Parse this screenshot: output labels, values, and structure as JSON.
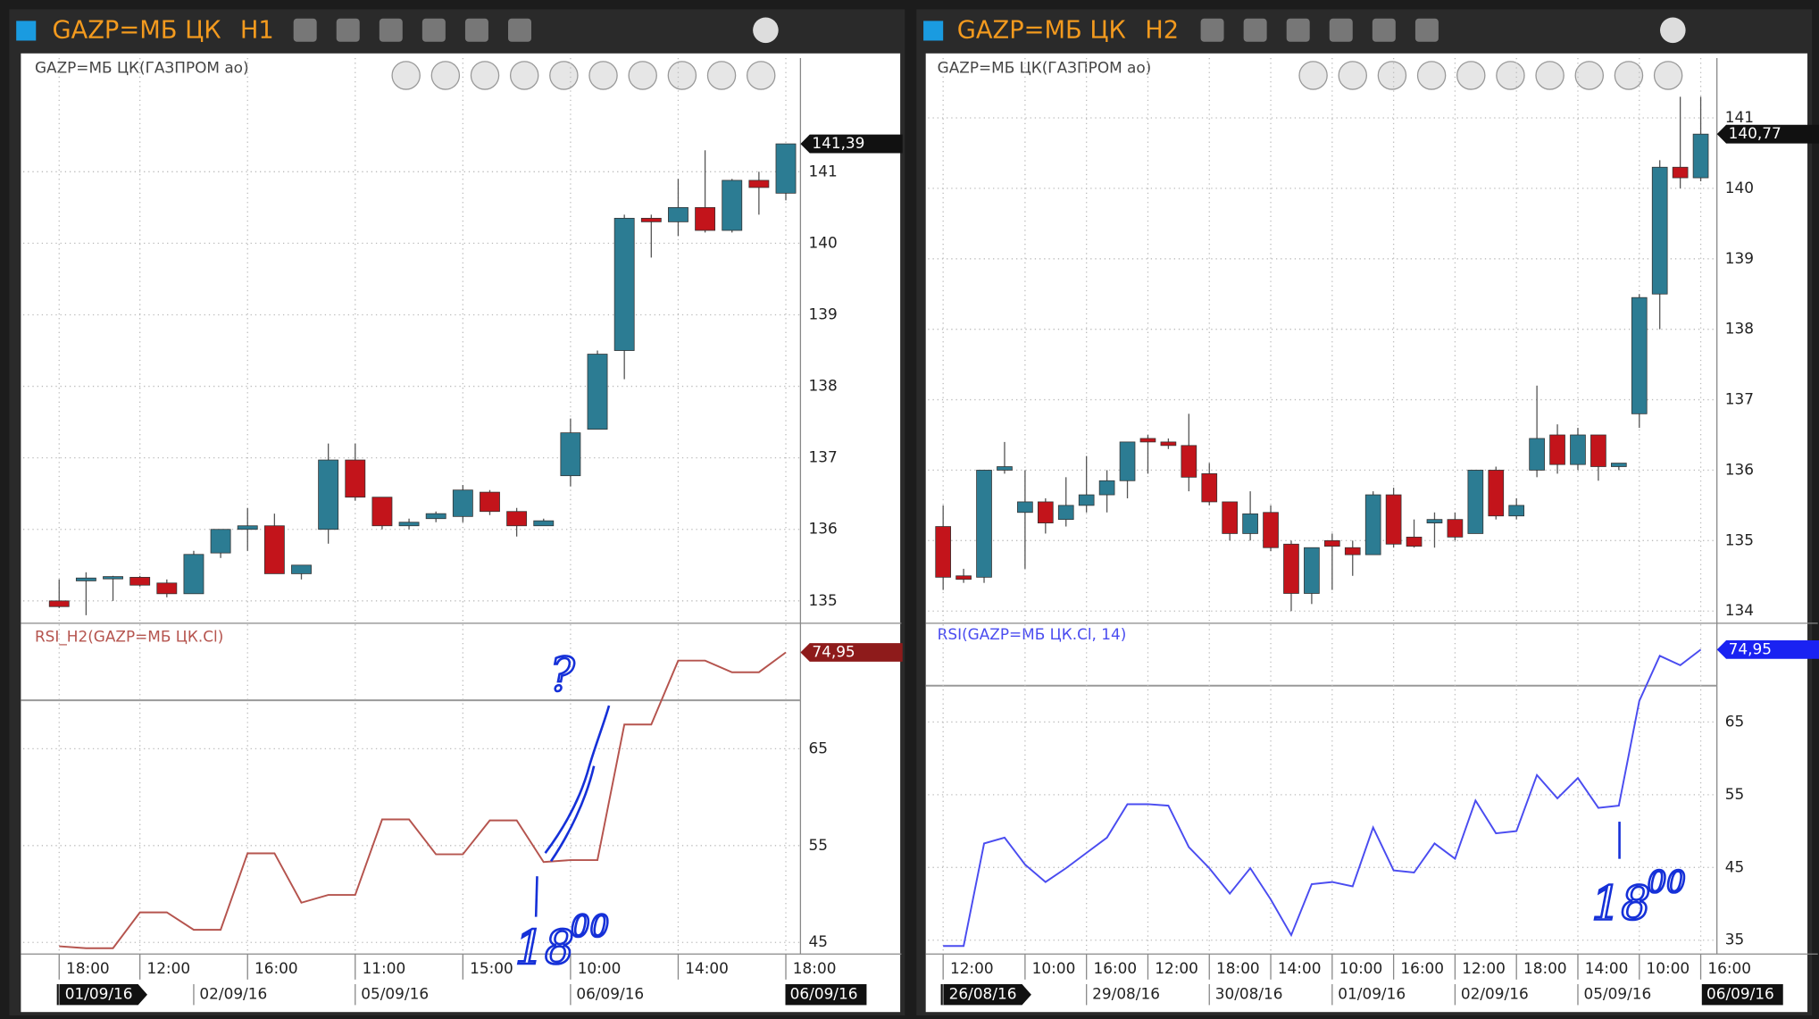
{
  "windows": [
    {
      "title": "GAZP=МБ ЦК",
      "timeframe": "H1",
      "price_chart": {
        "type": "candlestick",
        "title": "GAZP=МБ ЦК(ГАЗПРОМ ао)",
        "up_color": "#2c7c93",
        "down_color": "#c3141b",
        "open": [
          135.0,
          135.28,
          135.32,
          135.33,
          135.25,
          135.1,
          135.67,
          136.0,
          136.05,
          135.38,
          136.0,
          136.97,
          136.45,
          136.05,
          136.15,
          136.18,
          136.52,
          136.25,
          136.05,
          136.75,
          137.4,
          138.5,
          140.35,
          140.3,
          140.5,
          140.18,
          140.88,
          140.7
        ],
        "high": [
          135.3,
          135.4,
          135.35,
          135.35,
          135.3,
          135.7,
          136.0,
          136.3,
          136.22,
          135.5,
          137.2,
          137.2,
          136.45,
          136.15,
          136.25,
          136.62,
          136.55,
          136.3,
          136.15,
          137.55,
          138.5,
          140.4,
          140.4,
          140.9,
          141.3,
          140.9,
          141.0,
          141.39
        ],
        "low": [
          134.9,
          134.8,
          135.0,
          135.2,
          135.05,
          135.1,
          135.6,
          135.7,
          135.38,
          135.3,
          135.8,
          136.4,
          136.0,
          136.0,
          136.1,
          136.1,
          136.2,
          135.9,
          136.05,
          136.6,
          137.4,
          138.1,
          139.8,
          140.1,
          140.15,
          140.15,
          140.4,
          140.6
        ],
        "close": [
          134.92,
          135.32,
          135.34,
          135.22,
          135.1,
          135.65,
          136.0,
          136.05,
          135.38,
          135.5,
          136.97,
          136.45,
          136.05,
          136.1,
          136.22,
          136.55,
          136.25,
          136.05,
          136.12,
          137.35,
          138.45,
          140.35,
          140.3,
          140.5,
          140.18,
          140.88,
          140.78,
          141.39
        ],
        "ylim": [
          134.72,
          142.59
        ],
        "yticks": [
          135,
          136,
          137,
          138,
          139,
          140,
          141
        ],
        "last_label": "141,39"
      },
      "rsi_chart": {
        "type": "line",
        "title": "RSI_H2(GAZP=МБ ЦК.Cl)",
        "color": "#b5544e",
        "label_color": "#8e1b1b",
        "values": [
          44.6,
          44.4,
          44.4,
          48.1,
          48.1,
          46.3,
          46.3,
          54.2,
          54.2,
          49.1,
          49.9,
          49.9,
          57.7,
          57.7,
          54.1,
          54.1,
          57.6,
          57.6,
          53.3,
          53.5,
          53.5,
          67.5,
          67.5,
          74.1,
          74.1,
          72.9,
          72.9,
          74.95
        ],
        "ylim": [
          43.8,
          77.6
        ],
        "yticks": [
          45,
          55,
          65
        ],
        "level": 70,
        "last_label": "74,95"
      },
      "time_axis": {
        "categories": [
          "18:00",
          null,
          null,
          "12:00",
          null,
          null,
          null,
          "16:00",
          null,
          null,
          null,
          "11:00",
          null,
          null,
          null,
          "15:00",
          null,
          null,
          null,
          "10:00",
          null,
          null,
          null,
          "14:00",
          null,
          null,
          null,
          "18:00"
        ],
        "dates": [
          "01/09/16",
          null,
          null,
          null,
          null,
          "02/09/16",
          null,
          null,
          null,
          null,
          null,
          "05/09/16",
          null,
          null,
          null,
          null,
          null,
          null,
          null,
          "06/09/16",
          null,
          null,
          null,
          null,
          null,
          null,
          null,
          null
        ],
        "current_date": "06/09/16"
      },
      "annotations": [
        "?",
        "18",
        "00"
      ]
    },
    {
      "title": "GAZP=МБ ЦК",
      "timeframe": "H2",
      "price_chart": {
        "type": "candlestick",
        "title": "GAZP=МБ ЦК(ГАЗПРОМ ао)",
        "up_color": "#2c7c93",
        "down_color": "#c3141b",
        "open": [
          135.2,
          134.5,
          134.48,
          136.0,
          135.4,
          135.55,
          135.3,
          135.5,
          135.65,
          135.85,
          136.45,
          136.4,
          136.35,
          135.95,
          135.55,
          135.1,
          135.4,
          134.95,
          134.25,
          135.0,
          134.9,
          134.8,
          135.65,
          135.05,
          135.25,
          135.3,
          135.1,
          136.0,
          135.35,
          136.0,
          136.5,
          136.08,
          136.5,
          136.05,
          136.8,
          138.5,
          140.3,
          140.15
        ],
        "high": [
          135.5,
          134.6,
          136.0,
          136.4,
          136.0,
          135.6,
          135.9,
          136.2,
          136.0,
          136.4,
          136.5,
          136.45,
          136.8,
          136.1,
          135.55,
          135.7,
          135.5,
          135.0,
          134.9,
          135.1,
          135.0,
          135.7,
          135.75,
          135.3,
          135.4,
          135.4,
          136.0,
          136.05,
          135.6,
          137.2,
          136.65,
          136.6,
          136.5,
          136.1,
          138.5,
          140.4,
          141.3,
          141.3
        ],
        "low": [
          134.3,
          134.4,
          134.4,
          135.95,
          134.6,
          135.1,
          135.2,
          135.4,
          135.4,
          135.6,
          135.95,
          136.3,
          135.7,
          135.5,
          135.0,
          135.0,
          134.85,
          134.0,
          134.1,
          134.3,
          134.5,
          134.8,
          134.9,
          134.9,
          134.9,
          135.0,
          135.1,
          135.3,
          135.3,
          135.9,
          135.95,
          136.0,
          135.85,
          136.0,
          136.6,
          138.0,
          140.0,
          140.1
        ],
        "close": [
          134.48,
          134.45,
          136.0,
          136.05,
          135.55,
          135.25,
          135.5,
          135.65,
          135.85,
          136.4,
          136.4,
          136.35,
          135.9,
          135.55,
          135.1,
          135.38,
          134.9,
          134.25,
          134.9,
          134.92,
          134.8,
          135.65,
          134.95,
          134.92,
          135.3,
          135.05,
          136.0,
          135.35,
          135.5,
          136.45,
          136.08,
          136.5,
          136.05,
          136.1,
          138.45,
          140.3,
          140.15,
          140.77
        ],
        "ylim": [
          133.86,
          141.85
        ],
        "yticks": [
          134,
          135,
          136,
          137,
          138,
          139,
          140,
          141
        ],
        "last_label": "140,77"
      },
      "rsi_chart": {
        "type": "line",
        "title": "RSI(GAZP=МБ ЦК.Cl, 14)",
        "color": "#4a4cf0",
        "label_color": "#1a22f2",
        "values": [
          34.2,
          34.2,
          48.3,
          49.1,
          45.4,
          43.0,
          44.9,
          47.0,
          49.1,
          53.7,
          53.7,
          53.5,
          47.8,
          44.9,
          41.4,
          44.9,
          40.6,
          35.7,
          42.7,
          43.0,
          42.4,
          50.5,
          44.6,
          44.3,
          48.3,
          46.2,
          54.2,
          49.7,
          50.0,
          57.7,
          54.5,
          57.3,
          53.2,
          53.5,
          67.9,
          74.1,
          72.8,
          74.95
        ],
        "ylim": [
          33.1,
          78.1
        ],
        "yticks": [
          35,
          45,
          55,
          65
        ],
        "level": 70,
        "last_label": "74,95"
      },
      "time_axis": {
        "categories": [
          "12:00",
          null,
          null,
          null,
          "10:00",
          null,
          null,
          "16:00",
          null,
          null,
          "12:00",
          null,
          null,
          "18:00",
          null,
          null,
          "14:00",
          null,
          null,
          "10:00",
          null,
          null,
          "16:00",
          null,
          null,
          "12:00",
          null,
          null,
          "18:00",
          null,
          null,
          "14:00",
          null,
          null,
          "10:00",
          null,
          null,
          "16:00"
        ],
        "dates": [
          "26/08/16",
          null,
          null,
          null,
          null,
          null,
          null,
          "29/08/16",
          null,
          null,
          null,
          null,
          null,
          "30/08/16",
          null,
          null,
          null,
          null,
          null,
          "01/09/16",
          null,
          null,
          null,
          null,
          null,
          "02/09/16",
          null,
          null,
          null,
          null,
          null,
          "05/09/16",
          null,
          null,
          null,
          null,
          null,
          null
        ],
        "current_date": "06/09/16"
      },
      "annotations": [
        "18",
        "00"
      ]
    }
  ]
}
